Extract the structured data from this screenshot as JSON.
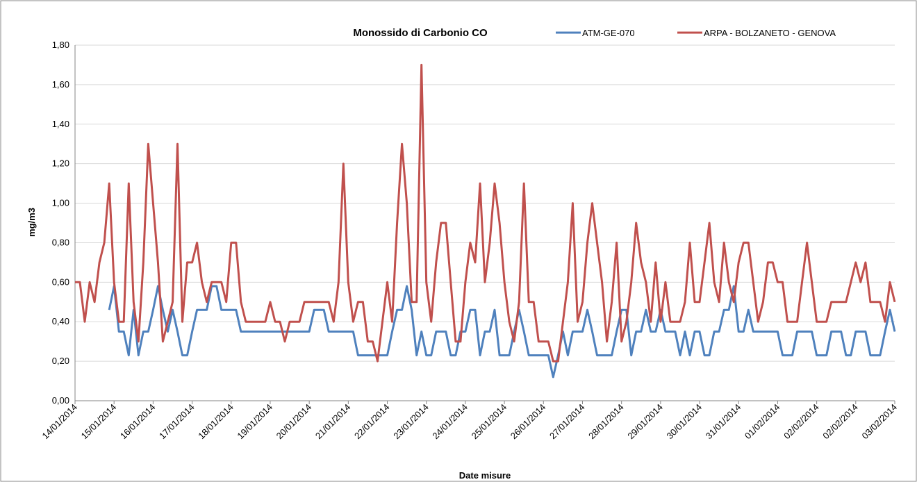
{
  "chart_data": {
    "type": "line",
    "title": "Monossido di Carbonio CO",
    "x_label": "Date misure",
    "y_label": "mg/m3",
    "categories": [
      "14/01/2014",
      null,
      null,
      null,
      null,
      null,
      null,
      null,
      "15/01/2014",
      null,
      null,
      null,
      null,
      null,
      null,
      null,
      "16/01/2014",
      null,
      null,
      null,
      null,
      null,
      null,
      null,
      "17/01/2014",
      null,
      null,
      null,
      null,
      null,
      null,
      null,
      "18/01/2014",
      null,
      null,
      null,
      null,
      null,
      null,
      null,
      "19/01/2014",
      null,
      null,
      null,
      null,
      null,
      null,
      null,
      "20/01/2014",
      null,
      null,
      null,
      null,
      null,
      null,
      null,
      "21/01/2014",
      null,
      null,
      null,
      null,
      null,
      null,
      null,
      "22/01/2014",
      null,
      null,
      null,
      null,
      null,
      null,
      null,
      "23/01/2014",
      null,
      null,
      null,
      null,
      null,
      null,
      null,
      "24/01/2014",
      null,
      null,
      null,
      null,
      null,
      null,
      null,
      "25/01/2014",
      null,
      null,
      null,
      null,
      null,
      null,
      null,
      "26/01/2014",
      null,
      null,
      null,
      null,
      null,
      null,
      null,
      "27/01/2014",
      null,
      null,
      null,
      null,
      null,
      null,
      null,
      "28/01/2014",
      null,
      null,
      null,
      null,
      null,
      null,
      null,
      "29/01/2014",
      null,
      null,
      null,
      null,
      null,
      null,
      null,
      "30/01/2014",
      null,
      null,
      null,
      null,
      null,
      null,
      null,
      "31/01/2014",
      null,
      null,
      null,
      null,
      null,
      null,
      null,
      "01/02/2014",
      null,
      null,
      null,
      null,
      null,
      null,
      null,
      "02/02/2014",
      null,
      null,
      null,
      null,
      null,
      null,
      null,
      "02/02/2014",
      null,
      null,
      null,
      null,
      null,
      null,
      null,
      "03/02/2014"
    ],
    "series": [
      {
        "name": "ATM-GE-070",
        "color": "#4f81bd",
        "values": [
          null,
          null,
          null,
          null,
          null,
          null,
          null,
          0.46,
          0.58,
          0.35,
          0.35,
          0.23,
          0.46,
          0.23,
          0.35,
          0.35,
          0.46,
          0.58,
          0.46,
          0.35,
          0.46,
          0.35,
          0.23,
          0.23,
          0.35,
          0.46,
          0.46,
          0.46,
          0.58,
          0.58,
          0.46,
          0.46,
          0.46,
          0.46,
          0.35,
          0.35,
          0.35,
          0.35,
          0.35,
          0.35,
          0.35,
          0.35,
          0.35,
          0.35,
          0.35,
          0.35,
          0.35,
          0.35,
          0.35,
          0.46,
          0.46,
          0.46,
          0.35,
          0.35,
          0.35,
          0.35,
          0.35,
          0.35,
          0.23,
          0.23,
          0.23,
          0.23,
          0.23,
          0.23,
          0.23,
          0.35,
          0.46,
          0.46,
          0.58,
          0.46,
          0.23,
          0.35,
          0.23,
          0.23,
          0.35,
          0.35,
          0.35,
          0.23,
          0.23,
          0.35,
          0.35,
          0.46,
          0.46,
          0.23,
          0.35,
          0.35,
          0.46,
          0.23,
          0.23,
          0.23,
          0.35,
          0.46,
          0.35,
          0.23,
          0.23,
          0.23,
          0.23,
          0.23,
          0.12,
          0.23,
          0.35,
          0.23,
          0.35,
          0.35,
          0.35,
          0.46,
          0.35,
          0.23,
          0.23,
          0.23,
          0.23,
          0.35,
          0.46,
          0.46,
          0.23,
          0.35,
          0.35,
          0.46,
          0.35,
          0.35,
          0.46,
          0.35,
          0.35,
          0.35,
          0.23,
          0.35,
          0.23,
          0.35,
          0.35,
          0.23,
          0.23,
          0.35,
          0.35,
          0.46,
          0.46,
          0.58,
          0.35,
          0.35,
          0.46,
          0.35,
          0.35,
          0.35,
          0.35,
          0.35,
          0.35,
          0.23,
          0.23,
          0.23,
          0.35,
          0.35,
          0.35,
          0.35,
          0.23,
          0.23,
          0.23,
          0.35,
          0.35,
          0.35,
          0.23,
          0.23,
          0.35,
          0.35,
          0.35,
          0.23,
          0.23,
          0.23,
          0.35,
          0.46,
          0.35
        ]
      },
      {
        "name": "ARPA - BOLZANETO - GENOVA",
        "color": "#c0504d",
        "values": [
          0.6,
          0.6,
          0.4,
          0.6,
          0.5,
          0.7,
          0.8,
          1.1,
          0.6,
          0.4,
          0.4,
          1.1,
          0.5,
          0.3,
          0.7,
          1.3,
          1.0,
          0.7,
          0.3,
          0.4,
          0.5,
          1.3,
          0.4,
          0.7,
          0.7,
          0.8,
          0.6,
          0.5,
          0.6,
          0.6,
          0.6,
          0.5,
          0.8,
          0.8,
          0.5,
          0.4,
          0.4,
          0.4,
          0.4,
          0.4,
          0.5,
          0.4,
          0.4,
          0.3,
          0.4,
          0.4,
          0.4,
          0.5,
          0.5,
          0.5,
          0.5,
          0.5,
          0.5,
          0.4,
          0.6,
          1.2,
          0.6,
          0.4,
          0.5,
          0.5,
          0.3,
          0.3,
          0.2,
          0.4,
          0.6,
          0.4,
          0.9,
          1.3,
          1.0,
          0.5,
          0.5,
          1.7,
          0.6,
          0.4,
          0.7,
          0.9,
          0.9,
          0.6,
          0.3,
          0.3,
          0.6,
          0.8,
          0.7,
          1.1,
          0.6,
          0.8,
          1.1,
          0.9,
          0.6,
          0.4,
          0.3,
          0.5,
          1.1,
          0.5,
          0.5,
          0.3,
          0.3,
          0.3,
          0.2,
          0.2,
          0.4,
          0.6,
          1.0,
          0.4,
          0.5,
          0.8,
          1.0,
          0.8,
          0.6,
          0.3,
          0.5,
          0.8,
          0.3,
          0.4,
          0.6,
          0.9,
          0.7,
          0.6,
          0.4,
          0.7,
          0.4,
          0.6,
          0.4,
          0.4,
          0.4,
          0.5,
          0.8,
          0.5,
          0.5,
          0.7,
          0.9,
          0.6,
          0.5,
          0.8,
          0.6,
          0.5,
          0.7,
          0.8,
          0.8,
          0.6,
          0.4,
          0.5,
          0.7,
          0.7,
          0.6,
          0.6,
          0.4,
          0.4,
          0.4,
          0.6,
          0.8,
          0.6,
          0.4,
          0.4,
          0.4,
          0.5,
          0.5,
          0.5,
          0.5,
          0.6,
          0.7,
          0.6,
          0.7,
          0.5,
          0.5,
          0.5,
          0.4,
          0.6,
          0.5
        ]
      }
    ],
    "ylim": [
      0,
      1.8
    ],
    "yticks": [
      {
        "value": 0,
        "label": "0,00"
      },
      {
        "value": 0.2,
        "label": "0,20"
      },
      {
        "value": 0.4,
        "label": "0,40"
      },
      {
        "value": 0.6,
        "label": "0,60"
      },
      {
        "value": 0.8,
        "label": "0,80"
      },
      {
        "value": 1.0,
        "label": "1,00"
      },
      {
        "value": 1.2,
        "label": "1,20"
      },
      {
        "value": 1.4,
        "label": "1,40"
      },
      {
        "value": 1.6,
        "label": "1,60"
      },
      {
        "value": 1.8,
        "label": "1,80"
      }
    ],
    "grid": true,
    "legend": "top"
  }
}
